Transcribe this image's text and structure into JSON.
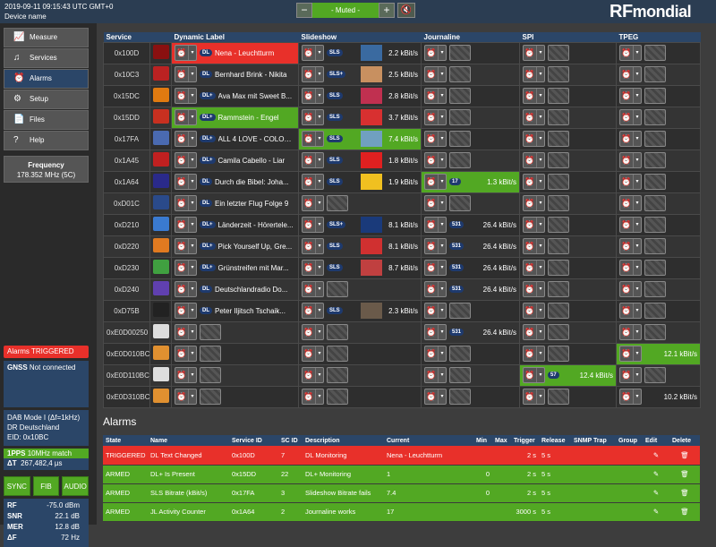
{
  "header": {
    "datetime": "2019-09-11 09:15:43 UTC GMT+0",
    "device": "Device name",
    "volume_minus": "−",
    "volume_label": "- Muted -",
    "volume_plus": "+",
    "logo_rf": "RF",
    "logo_mondial": "mondial"
  },
  "sidebar": {
    "items": [
      {
        "label": "Measure",
        "icon": "chart-icon"
      },
      {
        "label": "Services",
        "icon": "music-icon"
      },
      {
        "label": "Alarms",
        "icon": "alarm-clock-icon"
      },
      {
        "label": "Setup",
        "icon": "gear-icon"
      },
      {
        "label": "Files",
        "icon": "file-icon"
      },
      {
        "label": "Help",
        "icon": "help-icon"
      }
    ],
    "frequency_title": "Frequency",
    "frequency_value": "178.352 MHz (5C)",
    "alarms_status": "Alarms  TRIGGERED",
    "gnss_label": "GNSS",
    "gnss_value": "Not connected",
    "dab_mode": "DAB Mode I (Δf=1kHz)",
    "dab_ensemble": "DR Deutschland",
    "dab_eid": "EID: 0x10BC",
    "pps_label": "1PPS",
    "pps_value": "10MHz match",
    "dt_label": "ΔT",
    "dt_value": "267,482,4 µs",
    "buttons": [
      "SYNC",
      "FIB",
      "AUDIO"
    ],
    "measurements": [
      {
        "label": "RF",
        "value": "-75.0 dBm"
      },
      {
        "label": "SNR",
        "value": "22.1 dB"
      },
      {
        "label": "MER",
        "value": "12.8 dB"
      },
      {
        "label": "ΔF",
        "value": "72 Hz"
      }
    ]
  },
  "services_table": {
    "headers": [
      "Service",
      "Dynamic Label",
      "Slideshow",
      "Journaline",
      "SPI",
      "TPEG"
    ],
    "rows": [
      {
        "sid": "0x100D",
        "dl_tag": "DL",
        "dl": "Nena - Leuchtturm",
        "dl_state": "red",
        "sls_tag": "SLS",
        "sls_rate": "2.2 kBit/s",
        "icon_color": "#8a1010",
        "thumb": "#3a6aa0"
      },
      {
        "sid": "0x10C3",
        "dl_tag": "DL",
        "dl": "Bernhard Brink - Nikita",
        "sls_tag": "SLS+",
        "sls_rate": "2.5 kBit/s",
        "icon_color": "#b22",
        "thumb": "#c89060"
      },
      {
        "sid": "0x15DC",
        "dl_tag": "DL+",
        "dl": "Ava Max mit Sweet B...",
        "sls_tag": "SLS",
        "sls_rate": "2.8 kBit/s",
        "icon_color": "#e07a10",
        "thumb": "#c03050"
      },
      {
        "sid": "0x15DD",
        "dl_tag": "DL+",
        "dl": "Rammstein - Engel",
        "dl_state": "green",
        "sls_tag": "SLS",
        "sls_rate": "3.7 kBit/s",
        "icon_color": "#c83020",
        "thumb": "#d83030"
      },
      {
        "sid": "0x17FA",
        "dl_tag": "DL+",
        "dl": "ALL 4 LOVE - COLOR ...",
        "sls_tag": "SLS",
        "sls_rate": "7.4 kBit/s",
        "sls_state": "green",
        "icon_color": "#4a6ab0",
        "thumb": "#70a0c0"
      },
      {
        "sid": "0x1A45",
        "dl_tag": "DL+",
        "dl": "Camila Cabello - Liar",
        "sls_tag": "SLS",
        "sls_rate": "1.8 kBit/s",
        "icon_color": "#c02020",
        "thumb": "#e02020"
      },
      {
        "sid": "0x1A64",
        "dl_tag": "DL",
        "dl": "Durch die Bibel: Joha...",
        "sls_tag": "SLS",
        "sls_rate": "1.9 kBit/s",
        "jl_tag": "17",
        "jl_rate": "1.3 kBit/s",
        "jl_state": "green",
        "icon_color": "#2a2a8a",
        "thumb": "#f0c020"
      },
      {
        "sid": "0xD01C",
        "dl_tag": "DL",
        "dl": "Ein letzter Flug Folge 9",
        "icon_color": "#2a4a8a"
      },
      {
        "sid": "0xD210",
        "dl_tag": "DL+",
        "dl": "Länderzeit - Hörertele...",
        "sls_tag": "SLS+",
        "sls_rate": "8.1 kBit/s",
        "jl_tag": "531",
        "jl_rate": "26.4 kBit/s",
        "icon_color": "#3a7ad0",
        "thumb": "#1a3a7a"
      },
      {
        "sid": "0xD220",
        "dl_tag": "DL+",
        "dl": "Pick Yourself Up, Gre...",
        "sls_tag": "SLS",
        "sls_rate": "8.1 kBit/s",
        "jl_tag": "531",
        "jl_rate": "26.4 kBit/s",
        "icon_color": "#e07a20",
        "thumb": "#d03030"
      },
      {
        "sid": "0xD230",
        "dl_tag": "DL+",
        "dl": "Grünstreifen mit Mar...",
        "sls_tag": "SLS",
        "sls_rate": "8.7 kBit/s",
        "jl_tag": "531",
        "jl_rate": "26.4 kBit/s",
        "icon_color": "#40a040",
        "thumb": "#c04040"
      },
      {
        "sid": "0xD240",
        "dl_tag": "DL",
        "dl": "Deutschlandradio Do...",
        "jl_tag": "531",
        "jl_rate": "26.4 kBit/s",
        "icon_color": "#6040b0"
      },
      {
        "sid": "0xD75B",
        "dl_tag": "DL",
        "dl": "Peter Iljitsch Tschaik...",
        "sls_tag": "SLS",
        "sls_rate": "2.3 kBit/s",
        "icon_color": "#222",
        "thumb": "#6a5a4a"
      },
      {
        "sid": "0xE0D00250",
        "jl_tag": "531",
        "jl_rate": "26.4 kBit/s",
        "icon_color": "#ddd"
      },
      {
        "sid": "0xE0D010BC",
        "tpeg_rate": "12.1 kBit/s",
        "tpeg_state": "green",
        "icon_color": "#e09030"
      },
      {
        "sid": "0xE0D110BC",
        "spi_tag": "57",
        "spi_rate": "12.4 kBit/s",
        "spi_state": "green",
        "icon_color": "#ddd"
      },
      {
        "sid": "0xE0D310BC",
        "tpeg_rate": "10.2 kBit/s",
        "icon_color": "#e09030"
      }
    ]
  },
  "alarms": {
    "title": "Alarms",
    "headers": [
      "State",
      "Name",
      "Service ID",
      "SC ID",
      "Description",
      "Current",
      "Min",
      "Max",
      "Trigger",
      "Release",
      "SNMP Trap",
      "Group",
      "Edit",
      "Delete"
    ],
    "rows": [
      {
        "state": "TRIGGERED",
        "name": "DL Text Changed",
        "sid": "0x100D",
        "scid": "7",
        "desc": "DL Monitoring",
        "current": "Nena - Leuchtturm",
        "min": "",
        "max": "",
        "trigger": "2 s",
        "release": "5 s",
        "kind": "trig"
      },
      {
        "state": "ARMED",
        "name": "DL+ Is Present",
        "sid": "0x15DD",
        "scid": "22",
        "desc": "DL+ Monitoring",
        "current": "1",
        "min": "0",
        "max": "",
        "trigger": "2 s",
        "release": "5 s",
        "kind": "arm"
      },
      {
        "state": "ARMED",
        "name": "SLS Bitrate (kBit/s)",
        "sid": "0x17FA",
        "scid": "3",
        "desc": "Slideshow Bitrate fails",
        "current": "7.4",
        "min": "0",
        "max": "",
        "trigger": "2 s",
        "release": "5 s",
        "kind": "arm"
      },
      {
        "state": "ARMED",
        "name": "JL Activity Counter",
        "sid": "0x1A64",
        "scid": "2",
        "desc": "Journaline works",
        "current": "17",
        "min": "",
        "max": "",
        "trigger": "3000 s",
        "release": "5 s",
        "kind": "arm"
      }
    ]
  }
}
